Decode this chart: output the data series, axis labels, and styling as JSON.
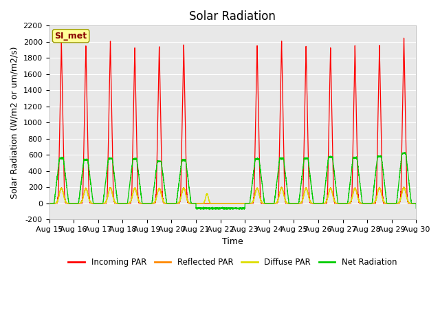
{
  "title": "Solar Radiation",
  "ylabel": "Solar Radiation (W/m2 or um/m2/s)",
  "xlabel": "Time",
  "ylim": [
    -200,
    2200
  ],
  "yticks": [
    -200,
    0,
    200,
    400,
    600,
    800,
    1000,
    1200,
    1400,
    1600,
    1800,
    2000,
    2200
  ],
  "xtick_labels": [
    "Aug 15",
    "Aug 16",
    "Aug 17",
    "Aug 18",
    "Aug 19",
    "Aug 20",
    "Aug 21",
    "Aug 22",
    "Aug 23",
    "Aug 24",
    "Aug 25",
    "Aug 26",
    "Aug 27",
    "Aug 28",
    "Aug 29",
    "Aug 30"
  ],
  "station_label": "SI_met",
  "station_box_color": "#ffff99",
  "station_text_color": "#880000",
  "background_color": "#e8e8e8",
  "colors": {
    "incoming": "#ff0000",
    "reflected": "#ff8800",
    "diffuse": "#dddd00",
    "net": "#00cc00"
  },
  "legend_labels": [
    "Incoming PAR",
    "Reflected PAR",
    "Diffuse PAR",
    "Net Radiation"
  ],
  "num_days": 15,
  "night_trough_net": -60,
  "title_fontsize": 12,
  "label_fontsize": 9,
  "tick_fontsize": 8
}
